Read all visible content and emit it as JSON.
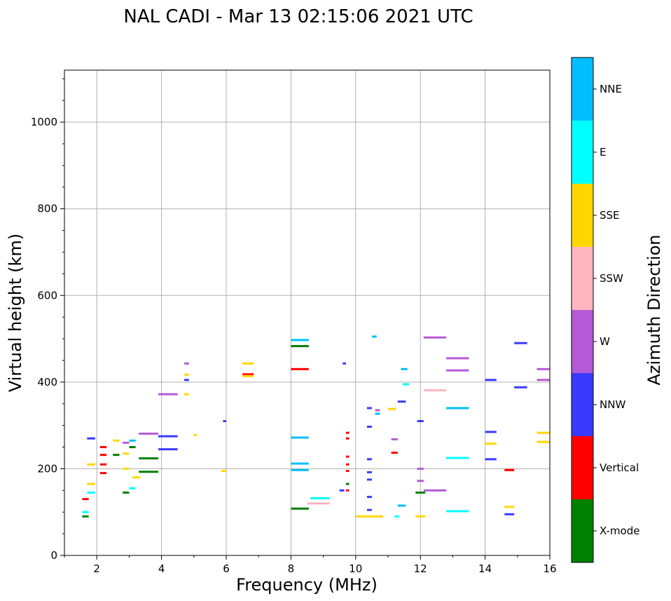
{
  "chart_data": {
    "type": "scatter",
    "title": "NAL CADI - Mar 13 02:15:06 2021 UTC",
    "xlabel": "Frequency (MHz)",
    "ylabel": "Virtual height (km)",
    "xlim": [
      1,
      16
    ],
    "ylim": [
      0,
      1120
    ],
    "xticks": [
      2,
      4,
      6,
      8,
      10,
      12,
      14,
      16
    ],
    "yticks": [
      0,
      200,
      400,
      600,
      800,
      1000
    ],
    "grid": true,
    "colorbar": {
      "label": "Azimuth Direction",
      "categories": [
        {
          "name": "X-mode",
          "color": "#008000"
        },
        {
          "name": "Vertical",
          "color": "#ff0000"
        },
        {
          "name": "NNW",
          "color": "#3a3aff"
        },
        {
          "name": "W",
          "color": "#b55ad6"
        },
        {
          "name": "SSW",
          "color": "#ffb6c1"
        },
        {
          "name": "SSE",
          "color": "#ffd700"
        },
        {
          "name": "E",
          "color": "#00ffff"
        },
        {
          "name": "NNE",
          "color": "#00bfff"
        }
      ]
    },
    "echoes": [
      {
        "f": 8.0,
        "f2": 8.55,
        "h": 497,
        "dir": "NNE"
      },
      {
        "f": 8.0,
        "f2": 8.55,
        "h": 483,
        "dir": "X-mode"
      },
      {
        "f": 8.0,
        "f2": 8.55,
        "h": 430,
        "dir": "Vertical"
      },
      {
        "f": 8.0,
        "f2": 8.55,
        "h": 272,
        "dir": "NNE"
      },
      {
        "f": 8.0,
        "f2": 8.55,
        "h": 212,
        "dir": "NNE"
      },
      {
        "f": 8.0,
        "f2": 8.55,
        "h": 197,
        "dir": "NNE"
      },
      {
        "f": 8.0,
        "f2": 8.55,
        "h": 108,
        "dir": "X-mode"
      },
      {
        "f": 8.6,
        "f2": 9.2,
        "h": 132,
        "dir": "E"
      },
      {
        "f": 8.5,
        "f2": 9.2,
        "h": 120,
        "dir": "SSW"
      },
      {
        "f": 6.5,
        "f2": 6.85,
        "h": 443,
        "dir": "SSE"
      },
      {
        "f": 6.5,
        "f2": 6.85,
        "h": 418,
        "dir": "Vertical"
      },
      {
        "f": 6.5,
        "f2": 6.85,
        "h": 414,
        "dir": "SSE"
      },
      {
        "f": 3.3,
        "f2": 3.9,
        "h": 281,
        "dir": "W"
      },
      {
        "f": 3.3,
        "f2": 3.9,
        "h": 224,
        "dir": "X-mode"
      },
      {
        "f": 3.3,
        "f2": 3.9,
        "h": 193,
        "dir": "X-mode"
      },
      {
        "f": 3.1,
        "f2": 3.35,
        "h": 180,
        "dir": "SSE"
      },
      {
        "f": 3.9,
        "f2": 4.5,
        "h": 275,
        "dir": "NNW"
      },
      {
        "f": 3.9,
        "f2": 4.5,
        "h": 245,
        "dir": "NNW"
      },
      {
        "f": 3.9,
        "f2": 4.5,
        "h": 372,
        "dir": "W"
      },
      {
        "f": 12.8,
        "f2": 13.5,
        "h": 455,
        "dir": "W"
      },
      {
        "f": 12.8,
        "f2": 13.5,
        "h": 427,
        "dir": "W"
      },
      {
        "f": 12.8,
        "f2": 13.5,
        "h": 340,
        "dir": "NNE"
      },
      {
        "f": 12.8,
        "f2": 13.5,
        "h": 225,
        "dir": "E"
      },
      {
        "f": 12.8,
        "f2": 13.5,
        "h": 102,
        "dir": "E"
      },
      {
        "f": 12.1,
        "f2": 12.8,
        "h": 503,
        "dir": "W"
      },
      {
        "f": 12.1,
        "f2": 12.8,
        "h": 381,
        "dir": "SSW"
      },
      {
        "f": 12.1,
        "f2": 12.8,
        "h": 150,
        "dir": "W"
      },
      {
        "f": 14.0,
        "f2": 14.35,
        "h": 405,
        "dir": "NNW"
      },
      {
        "f": 14.0,
        "f2": 14.35,
        "h": 285,
        "dir": "NNW"
      },
      {
        "f": 14.0,
        "f2": 14.35,
        "h": 258,
        "dir": "SSE"
      },
      {
        "f": 14.0,
        "f2": 14.35,
        "h": 222,
        "dir": "NNW"
      },
      {
        "f": 14.6,
        "f2": 14.9,
        "h": 197,
        "dir": "Vertical"
      },
      {
        "f": 14.6,
        "f2": 14.9,
        "h": 112,
        "dir": "SSE"
      },
      {
        "f": 14.6,
        "f2": 14.9,
        "h": 95,
        "dir": "NNW"
      },
      {
        "f": 14.9,
        "f2": 15.3,
        "h": 490,
        "dir": "NNW"
      },
      {
        "f": 14.9,
        "f2": 15.3,
        "h": 388,
        "dir": "NNW"
      },
      {
        "f": 15.6,
        "f2": 16.0,
        "h": 430,
        "dir": "W"
      },
      {
        "f": 15.6,
        "f2": 16.0,
        "h": 405,
        "dir": "W"
      },
      {
        "f": 15.6,
        "f2": 16.0,
        "h": 283,
        "dir": "SSE"
      },
      {
        "f": 15.6,
        "f2": 16.0,
        "h": 262,
        "dir": "SSE"
      },
      {
        "f": 10.5,
        "f2": 10.65,
        "h": 505,
        "dir": "NNE"
      },
      {
        "f": 10.35,
        "f2": 10.5,
        "h": 340,
        "dir": "NNW"
      },
      {
        "f": 10.35,
        "f2": 10.5,
        "h": 297,
        "dir": "NNW"
      },
      {
        "f": 10.35,
        "f2": 10.5,
        "h": 222,
        "dir": "NNW"
      },
      {
        "f": 10.35,
        "f2": 10.5,
        "h": 192,
        "dir": "NNW"
      },
      {
        "f": 10.35,
        "f2": 10.5,
        "h": 175,
        "dir": "NNW"
      },
      {
        "f": 10.35,
        "f2": 10.5,
        "h": 135,
        "dir": "NNW"
      },
      {
        "f": 10.35,
        "f2": 10.5,
        "h": 105,
        "dir": "NNW"
      },
      {
        "f": 10.0,
        "f2": 10.85,
        "h": 90,
        "dir": "SSE"
      },
      {
        "f": 10.6,
        "f2": 10.75,
        "h": 335,
        "dir": "W"
      },
      {
        "f": 10.6,
        "f2": 10.75,
        "h": 327,
        "dir": "NNE"
      },
      {
        "f": 11.0,
        "f2": 11.25,
        "h": 338,
        "dir": "SSE"
      },
      {
        "f": 11.1,
        "f2": 11.3,
        "h": 268,
        "dir": "W"
      },
      {
        "f": 11.1,
        "f2": 11.3,
        "h": 237,
        "dir": "Vertical"
      },
      {
        "f": 11.3,
        "f2": 11.55,
        "h": 355,
        "dir": "NNW"
      },
      {
        "f": 11.3,
        "f2": 11.55,
        "h": 115,
        "dir": "NNE"
      },
      {
        "f": 11.2,
        "f2": 11.35,
        "h": 90,
        "dir": "E"
      },
      {
        "f": 11.4,
        "f2": 11.6,
        "h": 430,
        "dir": "NNE"
      },
      {
        "f": 11.45,
        "f2": 11.65,
        "h": 395,
        "dir": "E"
      },
      {
        "f": 11.85,
        "f2": 12.15,
        "h": 145,
        "dir": "X-mode"
      },
      {
        "f": 11.85,
        "f2": 12.15,
        "h": 90,
        "dir": "SSE"
      },
      {
        "f": 11.9,
        "f2": 12.1,
        "h": 310,
        "dir": "NNW"
      },
      {
        "f": 11.9,
        "f2": 12.1,
        "h": 200,
        "dir": "W"
      },
      {
        "f": 11.9,
        "f2": 12.1,
        "h": 172,
        "dir": "W"
      },
      {
        "f": 9.7,
        "f2": 9.8,
        "h": 283,
        "dir": "Vertical"
      },
      {
        "f": 9.7,
        "f2": 9.8,
        "h": 270,
        "dir": "Vertical"
      },
      {
        "f": 9.7,
        "f2": 9.8,
        "h": 228,
        "dir": "Vertical"
      },
      {
        "f": 9.7,
        "f2": 9.8,
        "h": 210,
        "dir": "Vertical"
      },
      {
        "f": 9.7,
        "f2": 9.8,
        "h": 195,
        "dir": "Vertical"
      },
      {
        "f": 9.7,
        "f2": 9.8,
        "h": 165,
        "dir": "X-mode"
      },
      {
        "f": 9.7,
        "f2": 9.8,
        "h": 150,
        "dir": "Vertical"
      },
      {
        "f": 9.6,
        "f2": 9.7,
        "h": 443,
        "dir": "NNW"
      },
      {
        "f": 9.5,
        "f2": 9.65,
        "h": 150,
        "dir": "NNW"
      },
      {
        "f": 5.9,
        "f2": 6.0,
        "h": 310,
        "dir": "NNW"
      },
      {
        "f": 5.85,
        "f2": 6.0,
        "h": 195,
        "dir": "SSE"
      },
      {
        "f": 5.0,
        "f2": 5.1,
        "h": 278,
        "dir": "SSE"
      },
      {
        "f": 4.7,
        "f2": 4.85,
        "h": 405,
        "dir": "NNW"
      },
      {
        "f": 4.7,
        "f2": 4.85,
        "h": 372,
        "dir": "SSE"
      },
      {
        "f": 4.7,
        "f2": 4.85,
        "h": 417,
        "dir": "SSE"
      },
      {
        "f": 4.7,
        "f2": 4.85,
        "h": 443,
        "dir": "W"
      },
      {
        "f": 1.55,
        "f2": 1.75,
        "h": 130,
        "dir": "Vertical"
      },
      {
        "f": 1.55,
        "f2": 1.75,
        "h": 90,
        "dir": "X-mode"
      },
      {
        "f": 1.55,
        "f2": 1.75,
        "h": 100,
        "dir": "E"
      },
      {
        "f": 1.7,
        "f2": 1.95,
        "h": 270,
        "dir": "NNW"
      },
      {
        "f": 1.7,
        "f2": 1.95,
        "h": 210,
        "dir": "SSE"
      },
      {
        "f": 1.7,
        "f2": 1.95,
        "h": 165,
        "dir": "SSE"
      },
      {
        "f": 1.7,
        "f2": 1.95,
        "h": 145,
        "dir": "E"
      },
      {
        "f": 2.1,
        "f2": 2.3,
        "h": 250,
        "dir": "Vertical"
      },
      {
        "f": 2.1,
        "f2": 2.3,
        "h": 232,
        "dir": "Vertical"
      },
      {
        "f": 2.1,
        "f2": 2.3,
        "h": 210,
        "dir": "Vertical"
      },
      {
        "f": 2.1,
        "f2": 2.3,
        "h": 190,
        "dir": "Vertical"
      },
      {
        "f": 2.5,
        "f2": 2.7,
        "h": 265,
        "dir": "SSE"
      },
      {
        "f": 2.5,
        "f2": 2.7,
        "h": 232,
        "dir": "X-mode"
      },
      {
        "f": 2.8,
        "f2": 3.0,
        "h": 260,
        "dir": "W"
      },
      {
        "f": 2.8,
        "f2": 3.0,
        "h": 235,
        "dir": "SSE"
      },
      {
        "f": 2.8,
        "f2": 3.0,
        "h": 200,
        "dir": "SSE"
      },
      {
        "f": 2.8,
        "f2": 3.0,
        "h": 145,
        "dir": "X-mode"
      },
      {
        "f": 3.0,
        "f2": 3.2,
        "h": 265,
        "dir": "NNE"
      },
      {
        "f": 3.0,
        "f2": 3.2,
        "h": 250,
        "dir": "X-mode"
      },
      {
        "f": 3.0,
        "f2": 3.2,
        "h": 155,
        "dir": "E"
      }
    ]
  }
}
